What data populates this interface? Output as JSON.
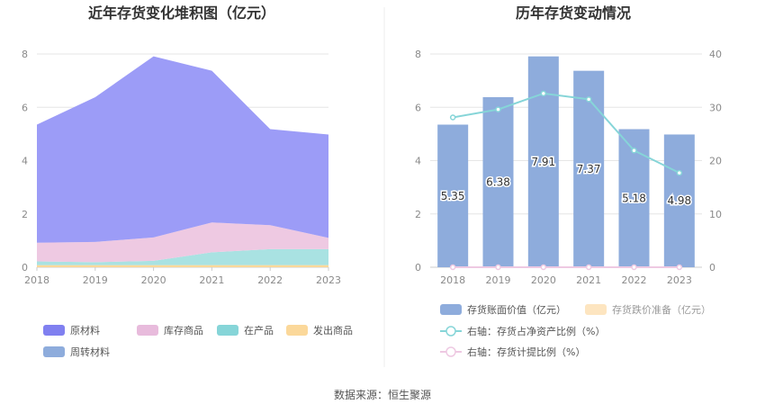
{
  "source_note": "数据来源：恒生聚源",
  "chart_data": [
    {
      "type": "area",
      "stacked": true,
      "title": "近年存货变化堆积图（亿元）",
      "x": [
        "2018",
        "2019",
        "2020",
        "2021",
        "2022",
        "2023"
      ],
      "ylim": [
        0,
        8
      ],
      "yticks": [
        "0",
        "2",
        "4",
        "6",
        "8"
      ],
      "series": [
        {
          "name": "发出商品",
          "color": "#fbd89a",
          "values": [
            0.08,
            0.08,
            0.08,
            0.08,
            0.08,
            0.08
          ]
        },
        {
          "name": "在产品",
          "color": "#a9e2e2",
          "values": [
            0.14,
            0.11,
            0.16,
            0.48,
            0.6,
            0.6
          ]
        },
        {
          "name": "库存商品",
          "color": "#eec9e2",
          "values": [
            0.7,
            0.76,
            0.88,
            1.12,
            0.9,
            0.42
          ]
        },
        {
          "name": "原材料",
          "color": "#9c9cf7",
          "values": [
            4.43,
            5.43,
            6.79,
            5.69,
            3.6,
            3.88
          ]
        },
        {
          "name": "周转材料",
          "color": "#8eacdc",
          "values": [
            0,
            0,
            0,
            0,
            0,
            0
          ]
        }
      ],
      "legend": [
        {
          "name": "原材料",
          "color": "#8080f0"
        },
        {
          "name": "库存商品",
          "color": "#e8bbdc"
        },
        {
          "name": "在产品",
          "color": "#86d5d8"
        },
        {
          "name": "发出商品",
          "color": "#fbd89a"
        },
        {
          "name": "周转材料",
          "color": "#8eacdc"
        }
      ],
      "grid": true
    },
    {
      "type": "bar",
      "title": "历年存货变动情况",
      "categories": [
        "2018",
        "2019",
        "2020",
        "2021",
        "2022",
        "2023"
      ],
      "ylim_left": [
        0,
        8
      ],
      "ylim_right": [
        0,
        40
      ],
      "yticks_left": [
        "0",
        "2",
        "4",
        "6",
        "8"
      ],
      "yticks_right": [
        "0",
        "10",
        "20",
        "30",
        "40"
      ],
      "series": [
        {
          "name": "存货账面价值（亿元）",
          "color": "#8eacdc",
          "axis": "left",
          "type": "bar",
          "values": [
            5.35,
            6.38,
            7.91,
            7.37,
            5.18,
            4.98
          ],
          "labels": [
            "5.35",
            "6.38",
            "7.91",
            "7.37",
            "5.18",
            "4.98"
          ]
        },
        {
          "name": "存货跌价准备（亿元）",
          "color": "#fde5c0",
          "axis": "left",
          "type": "bar",
          "values": [
            0,
            0,
            0,
            0,
            0,
            0
          ]
        },
        {
          "name": "右轴：存货占净资产比例（%）",
          "color": "#86d5d8",
          "axis": "right",
          "type": "line",
          "values": [
            28.1,
            29.6,
            32.6,
            31.5,
            21.9,
            17.7
          ]
        },
        {
          "name": "右轴：存货计提比例（%）",
          "color": "#eec9e2",
          "axis": "right",
          "type": "line",
          "values": [
            0,
            0,
            0,
            0,
            0,
            0
          ]
        }
      ],
      "grid": true
    }
  ]
}
